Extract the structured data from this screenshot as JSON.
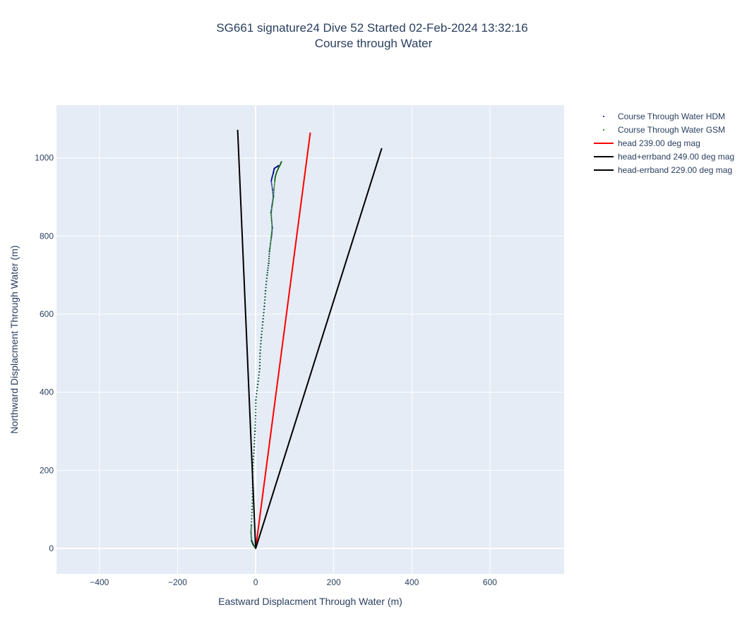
{
  "chart_data": {
    "type": "scatter",
    "title": "SG661 signature24 Dive 52 Started 02-Feb-2024 13:32:16",
    "subtitle": "Course through Water",
    "xlabel": "Eastward Displacment Through Water (m)",
    "ylabel": "Northward Displacment Through Water (m)",
    "xlim": [
      -510,
      790
    ],
    "ylim": [
      -65,
      1135
    ],
    "x_ticks": [
      -400,
      -200,
      0,
      200,
      400,
      600
    ],
    "x_tick_labels": [
      "−400",
      "−200",
      "0",
      "200",
      "400",
      "600"
    ],
    "y_ticks": [
      0,
      200,
      400,
      600,
      800,
      1000
    ],
    "y_tick_labels": [
      "0",
      "200",
      "400",
      "600",
      "800",
      "1000"
    ],
    "grid": true,
    "legend_position": "top-right",
    "series": [
      {
        "name": "Course Through Water HDM",
        "mode": "markers",
        "color": "#00008b",
        "x": [
          0,
          -6,
          -10,
          -12,
          -11,
          -9,
          -8,
          -8,
          -7,
          -4,
          -2,
          0,
          0,
          5,
          10,
          11,
          14,
          18,
          22,
          25,
          29,
          33,
          35,
          38,
          41,
          43,
          41,
          39,
          42,
          45,
          43,
          40,
          42,
          45,
          46,
          47,
          48,
          52,
          56,
          58
        ],
        "y": [
          0,
          10,
          20,
          40,
          60,
          100,
          140,
          180,
          220,
          260,
          300,
          340,
          380,
          420,
          460,
          500,
          540,
          580,
          620,
          660,
          700,
          730,
          760,
          780,
          800,
          820,
          840,
          860,
          880,
          900,
          920,
          940,
          950,
          960,
          965,
          970,
          973,
          976,
          978,
          980
        ]
      },
      {
        "name": "Course Through Water GSM",
        "mode": "markers",
        "color": "#006400",
        "x": [
          0,
          -7,
          -11,
          -12,
          -11,
          -9,
          -8,
          -8,
          -6,
          -3,
          -1,
          0,
          1,
          6,
          11,
          12,
          15,
          19,
          23,
          26,
          30,
          34,
          36,
          38,
          40,
          42,
          41,
          40,
          43,
          46,
          47,
          49,
          50,
          52,
          55,
          58,
          61,
          64,
          66
        ],
        "y": [
          0,
          10,
          20,
          40,
          60,
          100,
          140,
          180,
          220,
          260,
          300,
          340,
          380,
          420,
          460,
          500,
          540,
          580,
          620,
          660,
          700,
          730,
          760,
          780,
          800,
          820,
          840,
          860,
          880,
          900,
          920,
          940,
          950,
          958,
          966,
          973,
          979,
          985,
          990
        ]
      },
      {
        "name": "head 239.00 deg mag",
        "mode": "lines",
        "color": "#ff0000",
        "x": [
          0,
          140
        ],
        "y": [
          0,
          1065
        ]
      },
      {
        "name": "head+errband 249.00 deg mag",
        "mode": "lines",
        "color": "#000000",
        "x": [
          0,
          -46
        ],
        "y": [
          0,
          1072
        ]
      },
      {
        "name": "head-errband 229.00 deg mag",
        "mode": "lines",
        "color": "#000000",
        "x": [
          0,
          323
        ],
        "y": [
          0,
          1025
        ]
      }
    ]
  }
}
